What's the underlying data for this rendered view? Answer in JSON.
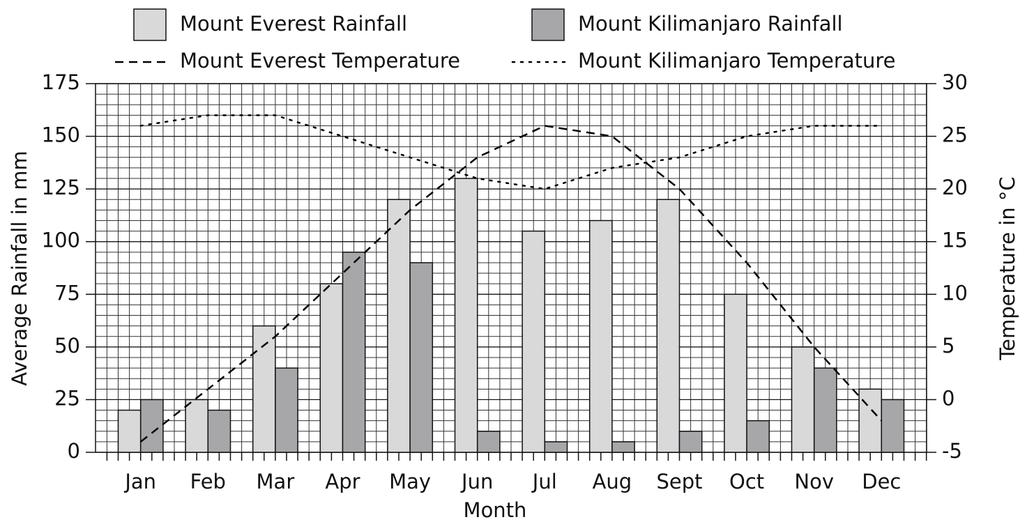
{
  "chart_data": {
    "type": "bar",
    "categories": [
      "Jan",
      "Feb",
      "Mar",
      "Apr",
      "May",
      "Jun",
      "Jul",
      "Aug",
      "Sept",
      "Oct",
      "Nov",
      "Dec"
    ],
    "x_label": "Month",
    "y_label": "Average Rainfall in mm",
    "y2_label": "Temperature in °C",
    "ylim": [
      0,
      175
    ],
    "yticks": [
      0,
      25,
      50,
      75,
      100,
      125,
      150,
      175
    ],
    "y2lim": [
      -5,
      30
    ],
    "y2ticks": [
      -5,
      0,
      5,
      10,
      15,
      20,
      25,
      30
    ],
    "grid": true,
    "series": [
      {
        "name": "Mount Everest Rainfall",
        "type": "bar",
        "color": "#d9d9d9",
        "values": [
          20,
          25,
          60,
          80,
          120,
          130,
          105,
          110,
          120,
          75,
          50,
          30
        ]
      },
      {
        "name": "Mount Kilimanjaro Rainfall",
        "type": "bar",
        "color": "#a7a7aa",
        "values": [
          25,
          20,
          40,
          95,
          90,
          10,
          5,
          5,
          10,
          15,
          40,
          25
        ]
      },
      {
        "name": "Mount Everest Temperature",
        "type": "line",
        "style": "dashed",
        "axis": "y2",
        "color": "#000000",
        "values": [
          -4,
          1,
          6,
          12,
          18,
          23,
          26,
          25,
          20,
          13,
          5,
          -2
        ]
      },
      {
        "name": "Mount Kilimanjaro Temperature",
        "type": "line",
        "style": "dotted",
        "axis": "y2",
        "color": "#000000",
        "values": [
          26,
          27,
          27,
          25,
          23,
          21,
          20,
          22,
          23,
          25,
          26,
          26
        ]
      }
    ]
  }
}
